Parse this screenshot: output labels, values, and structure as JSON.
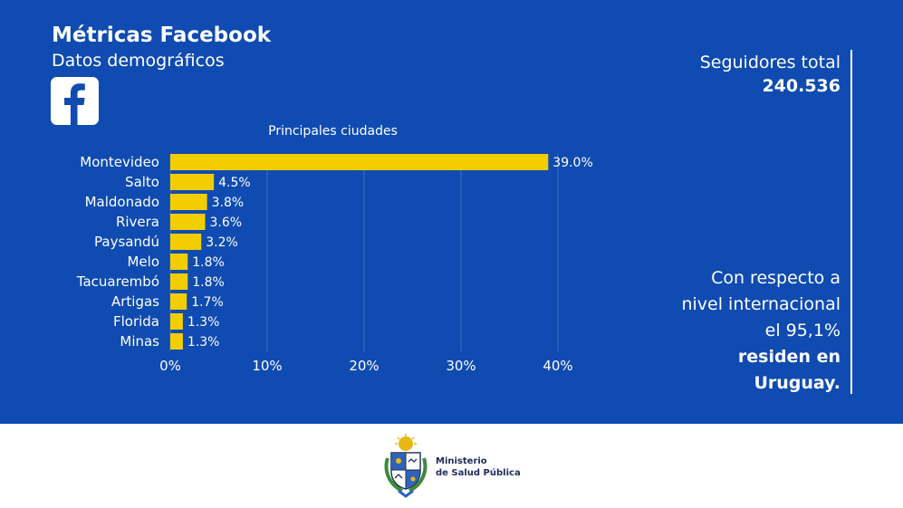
{
  "header": {
    "title": "Métricas Facebook",
    "subtitle": "Datos demográficos",
    "logo_icon": "facebook-logo-icon"
  },
  "followers": {
    "label": "Seguidores total",
    "value": "240.536"
  },
  "note": {
    "line1": "Con respecto a",
    "line2": "nivel internacional",
    "line3": "el 95,1%",
    "line4": "residen en",
    "line5": "Uruguay."
  },
  "footer": {
    "ministry_line1": "Ministerio",
    "ministry_line2": "de Salud Pública",
    "emblem_icon": "coat-of-arms-icon"
  },
  "colors": {
    "background": "#0f4bb0",
    "bar": "#f2cd00",
    "text": "#ffffff",
    "grid": "#3e6fc2"
  },
  "chart_data": {
    "type": "bar",
    "orientation": "horizontal",
    "title": "Principales ciudades",
    "categories": [
      "Montevideo",
      "Salto",
      "Maldonado",
      "Rivera",
      "Paysandú",
      "Melo",
      "Tacuarembó",
      "Artigas",
      "Florida",
      "Minas"
    ],
    "values": [
      39.0,
      4.5,
      3.8,
      3.6,
      3.2,
      1.8,
      1.8,
      1.7,
      1.3,
      1.3
    ],
    "value_labels": [
      "39.0%",
      "4.5%",
      "3.8%",
      "3.6%",
      "3.2%",
      "1.8%",
      "1.8%",
      "1.7%",
      "1.3%",
      "1.3%"
    ],
    "xticks": [
      0,
      10,
      20,
      30,
      40
    ],
    "xtick_labels": [
      "0%",
      "10%",
      "20%",
      "30%",
      "40%"
    ],
    "xlim": [
      0,
      40
    ],
    "grid": true,
    "legend": false
  }
}
